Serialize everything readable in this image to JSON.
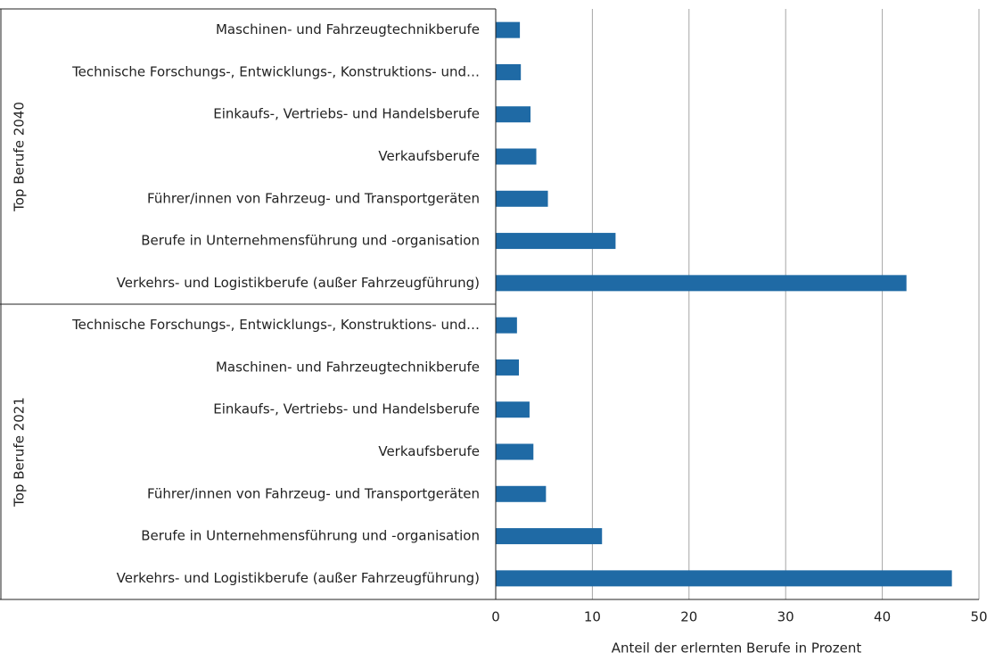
{
  "chart_data": {
    "type": "bar",
    "orientation": "horizontal",
    "color": "#1f6aa5",
    "xlabel": "Anteil der erlernten  Berufe in Prozent",
    "xlim": [
      0,
      50
    ],
    "xticks": [
      0,
      10,
      20,
      30,
      40,
      50
    ],
    "grid": true,
    "groups": [
      {
        "name": "Top Berufe 2040",
        "categories": [
          "Maschinen- und Fahrzeugtechnikberufe",
          "Technische Forschungs-, Entwicklungs-, Konstruktions- und…",
          "Einkaufs-, Vertriebs- und Handelsberufe",
          "Verkaufsberufe",
          "Führer/innen von Fahrzeug- und Transportgeräten",
          "Berufe in Unternehmensführung und -organisation",
          "Verkehrs- und Logistikberufe (außer Fahrzeugführung)"
        ],
        "values": [
          2.5,
          2.6,
          3.6,
          4.2,
          5.4,
          12.4,
          42.5
        ]
      },
      {
        "name": "Top Berufe 2021",
        "categories": [
          "Technische Forschungs-, Entwicklungs-, Konstruktions- und…",
          "Maschinen- und Fahrzeugtechnikberufe",
          "Einkaufs-, Vertriebs- und Handelsberufe",
          "Verkaufsberufe",
          "Führer/innen von Fahrzeug- und Transportgeräten",
          "Berufe in Unternehmensführung und -organisation",
          "Verkehrs- und Logistikberufe (außer Fahrzeugführung)"
        ],
        "values": [
          2.2,
          2.4,
          3.5,
          3.9,
          5.2,
          11.0,
          47.2
        ]
      }
    ]
  }
}
